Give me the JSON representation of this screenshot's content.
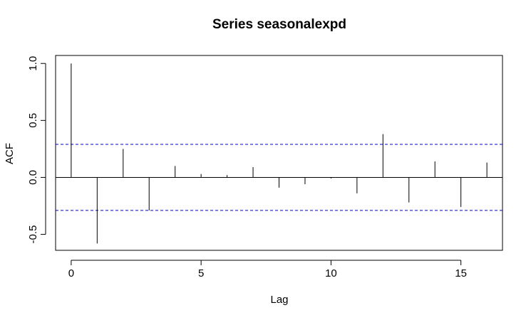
{
  "chart_data": {
    "type": "bar",
    "title": "Series  seasonalexpd",
    "xlabel": "Lag",
    "ylabel": "ACF",
    "xlim": [
      -0.6,
      16.6
    ],
    "ylim": [
      -0.64,
      1.07
    ],
    "x_ticks": [
      0,
      5,
      10,
      15
    ],
    "y_ticks": [
      -0.5,
      0.0,
      0.5,
      1.0
    ],
    "x_tick_labels": [
      "0",
      "5",
      "10",
      "15"
    ],
    "y_tick_labels": [
      "-0.5",
      "0.0",
      "0.5",
      "1.0"
    ],
    "lags": [
      0,
      1,
      2,
      3,
      4,
      5,
      6,
      7,
      8,
      9,
      10,
      11,
      12,
      13,
      14,
      15,
      16
    ],
    "values": [
      1.0,
      -0.58,
      0.25,
      -0.29,
      0.1,
      0.03,
      0.02,
      0.09,
      -0.09,
      -0.06,
      -0.01,
      -0.14,
      0.38,
      -0.22,
      0.14,
      -0.26,
      0.13
    ],
    "confidence_bound": 0.29,
    "grid": false,
    "colors": {
      "bars": "#000000",
      "zero_line": "#000000",
      "confidence_lines": "#0000cc",
      "frame": "#000000"
    }
  }
}
